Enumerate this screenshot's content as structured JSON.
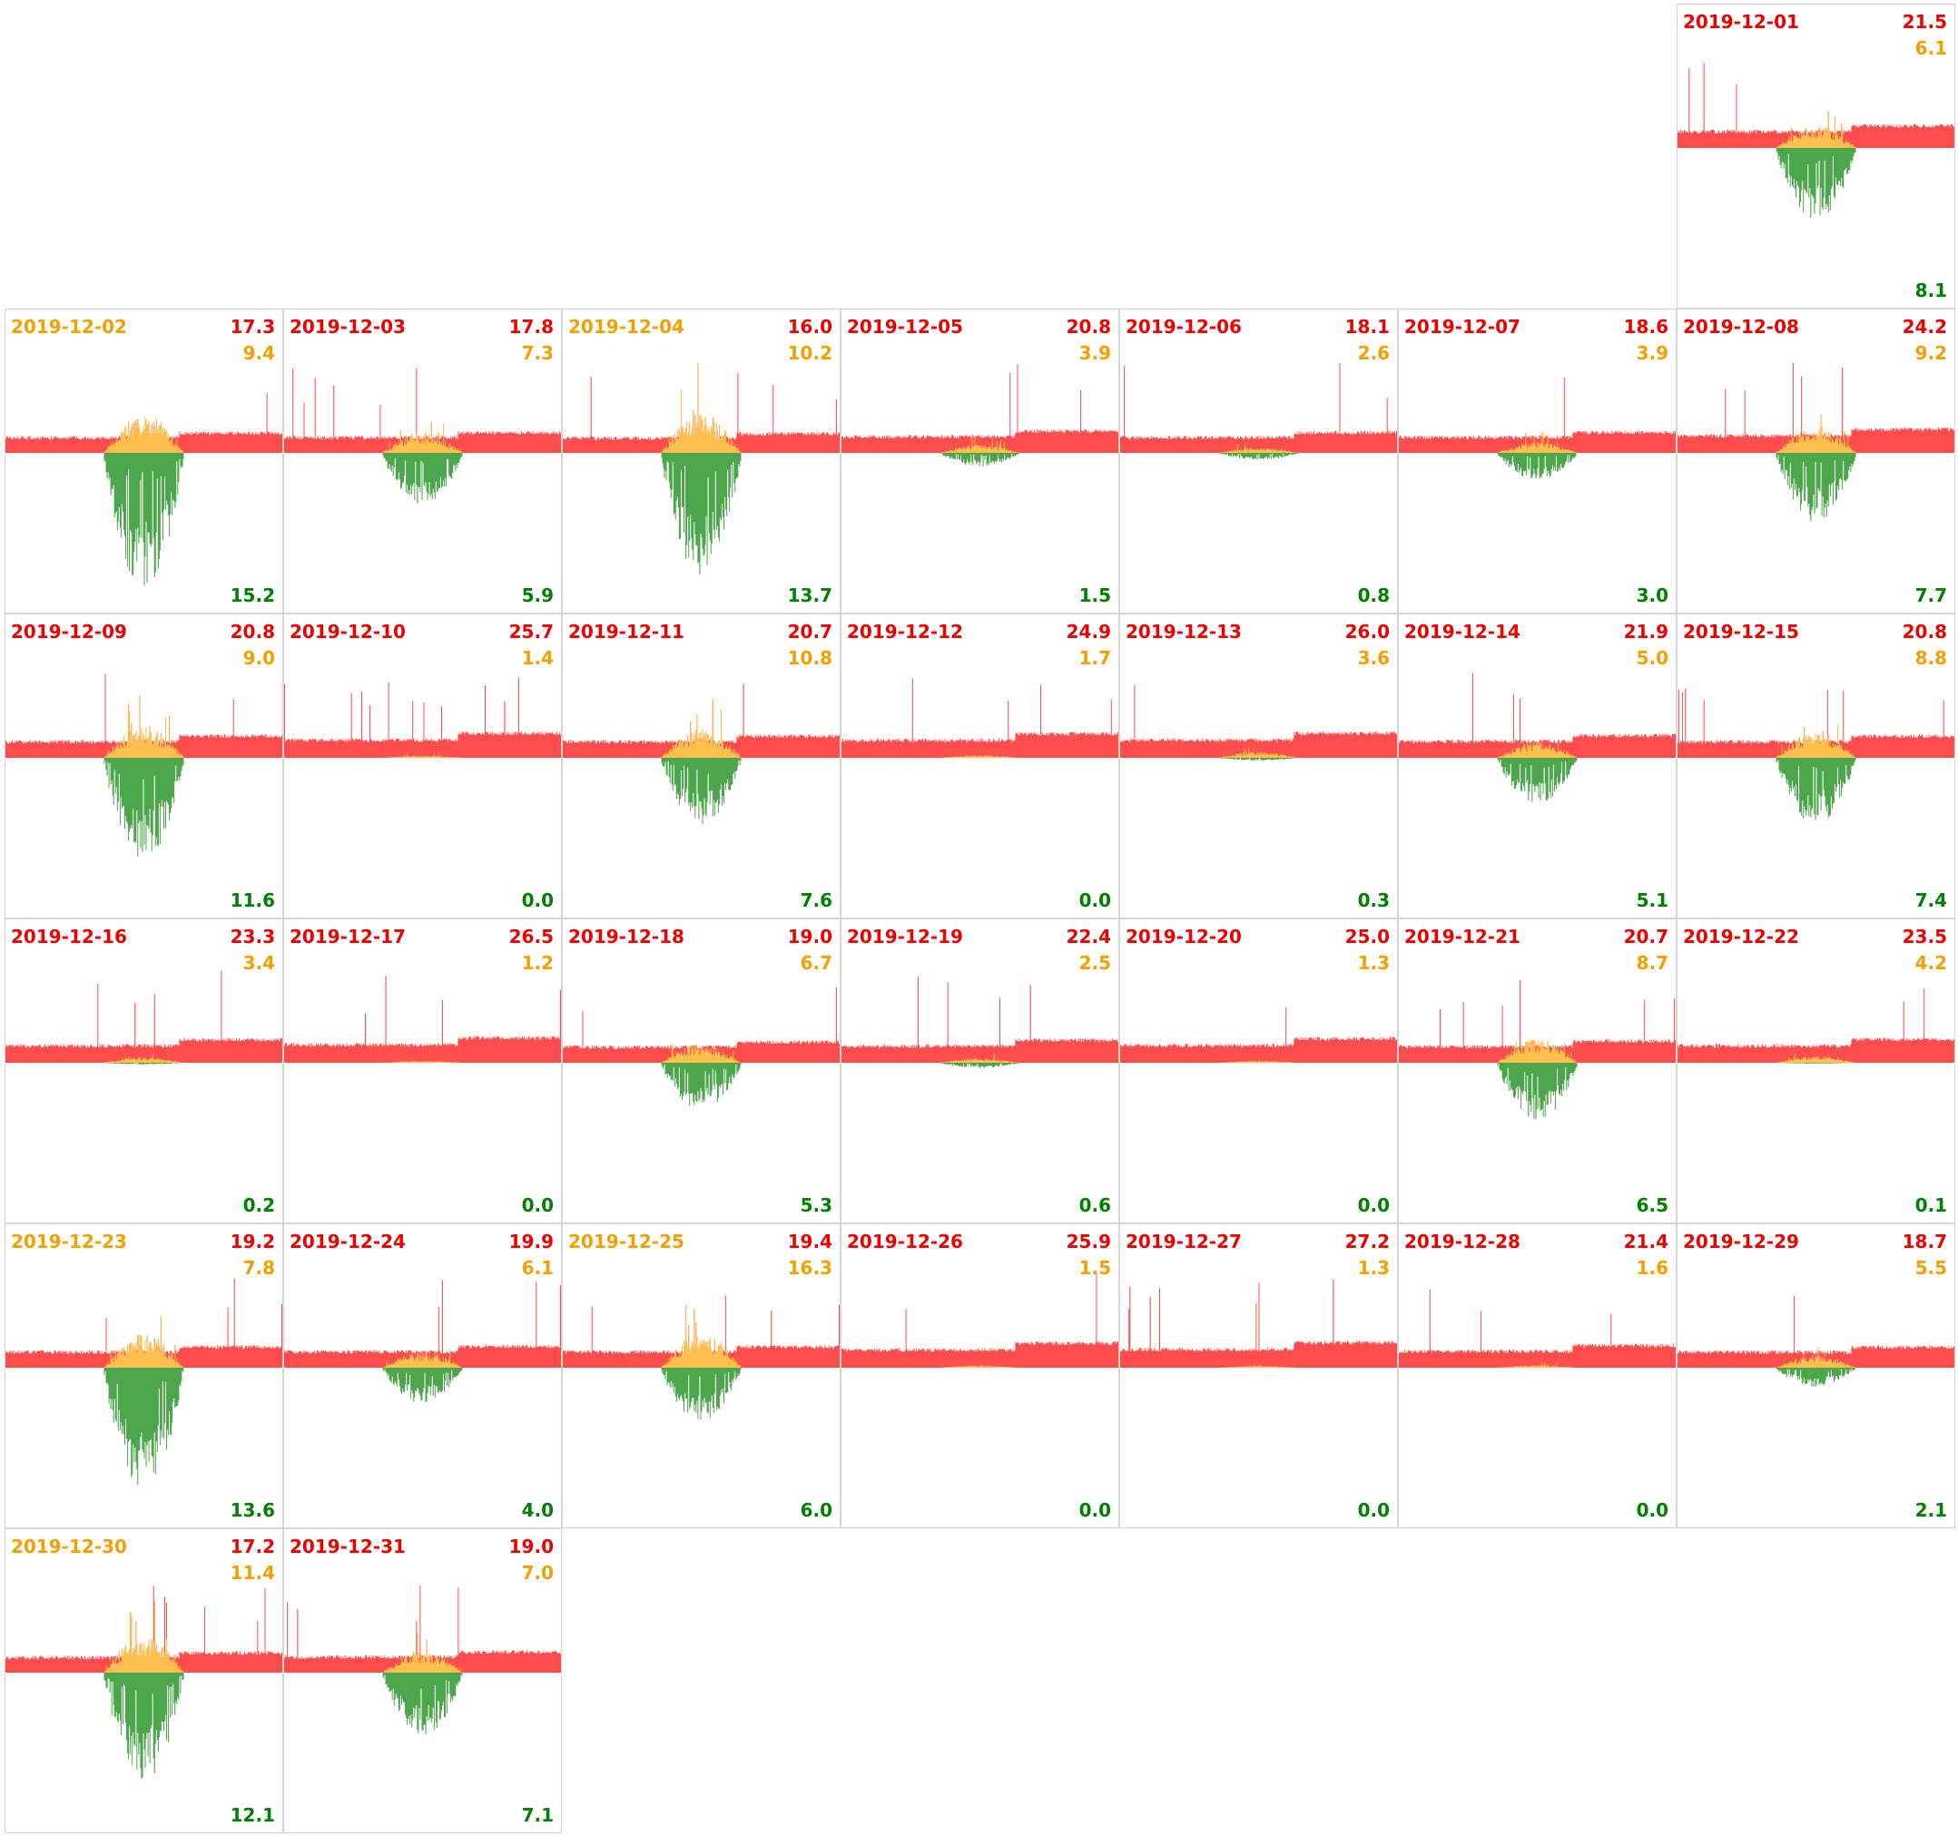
{
  "colors": {
    "consumption": "#ff4d4d",
    "self_consumption": "#ffbf4d",
    "export": "#4ca64c",
    "label_red": "#ee0000",
    "label_orange": "#f5a000",
    "label_green": "#008000"
  },
  "chart_data": {
    "type": "area",
    "days": [
      {
        "date": "2019-12-01",
        "top": "21.5",
        "mid": "6.1",
        "bottom": "8.1",
        "date_color": "red"
      },
      {
        "date": "2019-12-02",
        "top": "17.3",
        "mid": "9.4",
        "bottom": "15.2",
        "date_color": "orange"
      },
      {
        "date": "2019-12-03",
        "top": "17.8",
        "mid": "7.3",
        "bottom": "5.9",
        "date_color": "red"
      },
      {
        "date": "2019-12-04",
        "top": "16.0",
        "mid": "10.2",
        "bottom": "13.7",
        "date_color": "orange"
      },
      {
        "date": "2019-12-05",
        "top": "20.8",
        "mid": "3.9",
        "bottom": "1.5",
        "date_color": "red"
      },
      {
        "date": "2019-12-06",
        "top": "18.1",
        "mid": "2.6",
        "bottom": "0.8",
        "date_color": "red"
      },
      {
        "date": "2019-12-07",
        "top": "18.6",
        "mid": "3.9",
        "bottom": "3.0",
        "date_color": "red"
      },
      {
        "date": "2019-12-08",
        "top": "24.2",
        "mid": "9.2",
        "bottom": "7.7",
        "date_color": "red"
      },
      {
        "date": "2019-12-09",
        "top": "20.8",
        "mid": "9.0",
        "bottom": "11.6",
        "date_color": "red"
      },
      {
        "date": "2019-12-10",
        "top": "25.7",
        "mid": "1.4",
        "bottom": "0.0",
        "date_color": "red"
      },
      {
        "date": "2019-12-11",
        "top": "20.7",
        "mid": "10.8",
        "bottom": "7.6",
        "date_color": "red"
      },
      {
        "date": "2019-12-12",
        "top": "24.9",
        "mid": "1.7",
        "bottom": "0.0",
        "date_color": "red"
      },
      {
        "date": "2019-12-13",
        "top": "26.0",
        "mid": "3.6",
        "bottom": "0.3",
        "date_color": "red"
      },
      {
        "date": "2019-12-14",
        "top": "21.9",
        "mid": "5.0",
        "bottom": "5.1",
        "date_color": "red"
      },
      {
        "date": "2019-12-15",
        "top": "20.8",
        "mid": "8.8",
        "bottom": "7.4",
        "date_color": "red"
      },
      {
        "date": "2019-12-16",
        "top": "23.3",
        "mid": "3.4",
        "bottom": "0.2",
        "date_color": "red"
      },
      {
        "date": "2019-12-17",
        "top": "26.5",
        "mid": "1.2",
        "bottom": "0.0",
        "date_color": "red"
      },
      {
        "date": "2019-12-18",
        "top": "19.0",
        "mid": "6.7",
        "bottom": "5.3",
        "date_color": "red"
      },
      {
        "date": "2019-12-19",
        "top": "22.4",
        "mid": "2.5",
        "bottom": "0.6",
        "date_color": "red"
      },
      {
        "date": "2019-12-20",
        "top": "25.0",
        "mid": "1.3",
        "bottom": "0.0",
        "date_color": "red"
      },
      {
        "date": "2019-12-21",
        "top": "20.7",
        "mid": "8.7",
        "bottom": "6.5",
        "date_color": "red"
      },
      {
        "date": "2019-12-22",
        "top": "23.5",
        "mid": "4.2",
        "bottom": "0.1",
        "date_color": "red"
      },
      {
        "date": "2019-12-23",
        "top": "19.2",
        "mid": "7.8",
        "bottom": "13.6",
        "date_color": "orange"
      },
      {
        "date": "2019-12-24",
        "top": "19.9",
        "mid": "6.1",
        "bottom": "4.0",
        "date_color": "red"
      },
      {
        "date": "2019-12-25",
        "top": "19.4",
        "mid": "16.3",
        "bottom": "6.0",
        "date_color": "orange"
      },
      {
        "date": "2019-12-26",
        "top": "25.9",
        "mid": "1.5",
        "bottom": "0.0",
        "date_color": "red"
      },
      {
        "date": "2019-12-27",
        "top": "27.2",
        "mid": "1.3",
        "bottom": "0.0",
        "date_color": "red"
      },
      {
        "date": "2019-12-28",
        "top": "21.4",
        "mid": "1.6",
        "bottom": "0.0",
        "date_color": "red"
      },
      {
        "date": "2019-12-29",
        "top": "18.7",
        "mid": "5.5",
        "bottom": "2.1",
        "date_color": "red"
      },
      {
        "date": "2019-12-30",
        "top": "17.2",
        "mid": "11.4",
        "bottom": "12.1",
        "date_color": "orange"
      },
      {
        "date": "2019-12-31",
        "top": "19.0",
        "mid": "7.0",
        "bottom": "7.1",
        "date_color": "red"
      }
    ]
  }
}
